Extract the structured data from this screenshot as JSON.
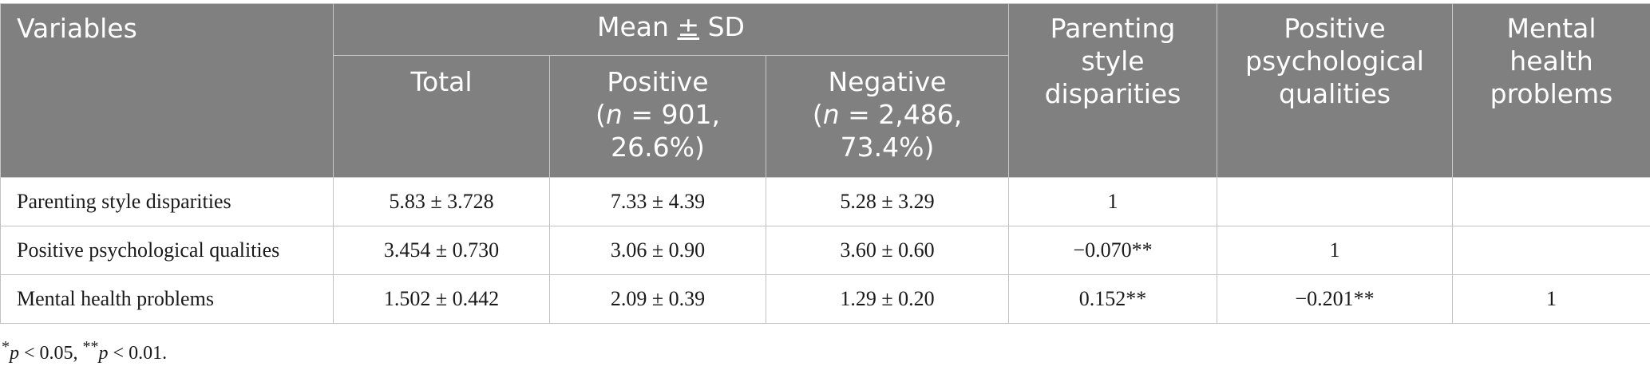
{
  "header": {
    "variables": "Variables",
    "mean_sd_prefix": "Mean",
    "mean_sd_symbol": "±",
    "mean_sd_suffix": " SD",
    "total": "Total",
    "positive": "Positive",
    "positive_n": "n",
    "positive_count": " = 901,",
    "positive_pct": "26.6%)",
    "negative": "Negative",
    "negative_n": "n",
    "negative_count": " = 2,486,",
    "negative_pct": "73.4%)",
    "col_psd": "Parenting style disparities",
    "col_ppq": "Positive psychological qualities",
    "col_mhp": "Mental health problems"
  },
  "rows": [
    {
      "label": "Parenting style disparities",
      "total": "5.83 ± 3.728",
      "positive": "7.33 ± 4.39",
      "negative": "5.28 ± 3.29",
      "psd": "1",
      "ppq": "",
      "mhp": ""
    },
    {
      "label": "Positive psychological qualities",
      "total": "3.454 ± 0.730",
      "positive": "3.06 ± 0.90",
      "negative": "3.60 ± 0.60",
      "psd": "−0.070**",
      "ppq": "1",
      "mhp": ""
    },
    {
      "label": "Mental health problems",
      "total": "1.502 ± 0.442",
      "positive": "2.09 ± 0.39",
      "negative": "1.29 ± 0.20",
      "psd": "0.152**",
      "ppq": "−0.201**",
      "mhp": "1"
    }
  ],
  "footnote": {
    "p1_sym": "*",
    "p1_var": "p",
    "p1_rest": " < 0.05, ",
    "p2_sym": "**",
    "p2_var": "p",
    "p2_rest": " < 0.01."
  }
}
